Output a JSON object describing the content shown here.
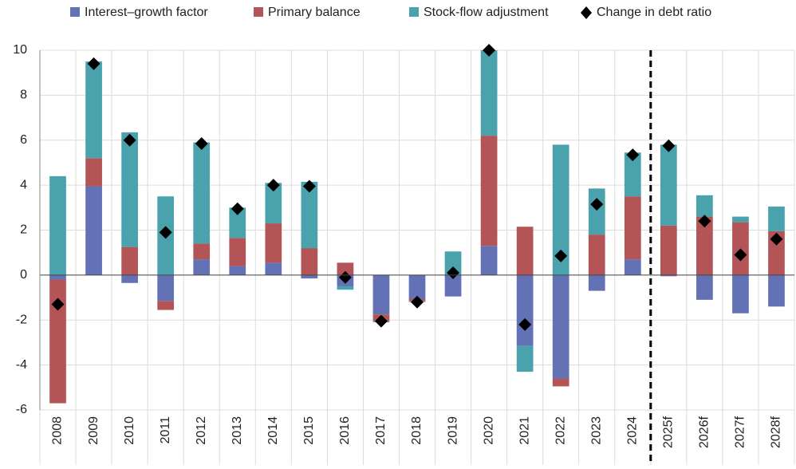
{
  "chart_data": {
    "type": "stacked-bar",
    "categories": [
      "2008",
      "2009",
      "2010",
      "2011",
      "2012",
      "2013",
      "2014",
      "2015",
      "2016",
      "2017",
      "2018",
      "2019",
      "2020",
      "2021",
      "2022",
      "2023",
      "2024",
      "2025f",
      "2026f",
      "2027f",
      "2028f"
    ],
    "series": [
      {
        "name": "Interest–growth factor",
        "color": "#6371b5",
        "values": [
          -0.2,
          3.95,
          -0.35,
          -1.15,
          0.7,
          0.4,
          0.55,
          -0.15,
          -0.5,
          -1.75,
          -1.05,
          -0.95,
          1.3,
          -3.15,
          -4.6,
          -0.7,
          0.7,
          -0.05,
          -1.1,
          -1.7,
          -1.4
        ]
      },
      {
        "name": "Primary balance",
        "color": "#b35457",
        "values": [
          -5.5,
          1.25,
          1.25,
          -0.4,
          0.7,
          1.25,
          1.75,
          1.2,
          0.55,
          -0.3,
          -0.1,
          0,
          4.9,
          2.15,
          -0.35,
          1.8,
          2.8,
          2.2,
          2.6,
          2.35,
          1.95
        ]
      },
      {
        "name": "Stock-flow adjustment",
        "color": "#4aa2ad",
        "values": [
          4.4,
          4.3,
          5.1,
          3.5,
          4.5,
          1.35,
          1.8,
          2.95,
          -0.15,
          -0.05,
          -0.05,
          1.05,
          3.8,
          -1.15,
          5.8,
          2.05,
          1.95,
          3.6,
          0.95,
          0.25,
          1.1
        ]
      }
    ],
    "markers": {
      "name": "Change in debt ratio",
      "color": "#000000",
      "values": [
        -1.3,
        9.4,
        6.0,
        1.9,
        5.85,
        2.95,
        4.0,
        3.95,
        -0.1,
        -2.05,
        -1.2,
        0.1,
        10,
        -2.2,
        0.85,
        3.15,
        5.35,
        5.75,
        2.4,
        0.9,
        1.6
      ]
    },
    "ylim": [
      -6,
      10
    ],
    "yticks": [
      -6,
      -4,
      -2,
      0,
      2,
      4,
      6,
      8,
      10
    ],
    "grid": true
  }
}
